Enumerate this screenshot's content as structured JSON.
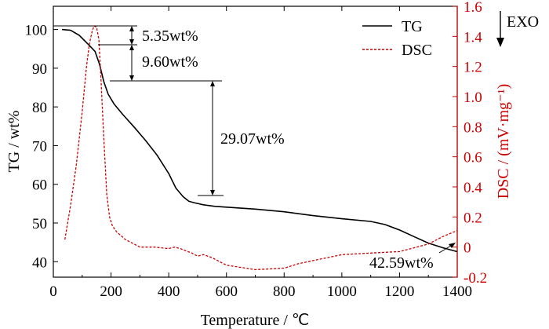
{
  "chart_data": {
    "type": "line",
    "x_axis": {
      "label": "Temperature / ℃",
      "range": [
        0,
        1400
      ],
      "ticks": [
        0,
        200,
        400,
        600,
        800,
        1000,
        1200,
        1400
      ],
      "tick_labels": [
        "0",
        "200",
        "400",
        "600",
        "800",
        "1000",
        "1200",
        "1400"
      ]
    },
    "y_axis_left": {
      "label": "TG / wt%",
      "range": [
        36,
        106
      ],
      "ticks": [
        40,
        50,
        60,
        70,
        80,
        90,
        100
      ],
      "tick_labels": [
        "40",
        "50",
        "60",
        "70",
        "80",
        "90",
        "100"
      ]
    },
    "y_axis_right": {
      "label": "DSC / (mV·mg⁻¹)",
      "range": [
        -0.2,
        1.6
      ],
      "ticks": [
        -0.2,
        0.0,
        0.2,
        0.4,
        0.6,
        0.8,
        1.0,
        1.2,
        1.4,
        1.6
      ],
      "tick_labels": [
        "-0.2",
        "0",
        "0.2",
        "0.4",
        "0.6",
        "0.8",
        "1.0",
        "1.2",
        "1.4",
        "1.6"
      ],
      "color": "#cc0000"
    },
    "series": [
      {
        "name": "TG",
        "axis": "left",
        "color": "#000000",
        "style": "solid",
        "x": [
          30,
          60,
          90,
          110,
          130,
          145,
          160,
          175,
          190,
          210,
          240,
          280,
          320,
          360,
          400,
          425,
          450,
          470,
          490,
          520,
          560,
          600,
          700,
          800,
          900,
          1000,
          1100,
          1150,
          1200,
          1250,
          1300,
          1350,
          1400
        ],
        "y": [
          100.0,
          99.8,
          98.5,
          97.0,
          95.5,
          94.3,
          91.0,
          86.5,
          83.3,
          80.8,
          78.1,
          74.8,
          71.3,
          67.5,
          62.8,
          59.0,
          56.8,
          55.6,
          55.2,
          54.7,
          54.3,
          54.1,
          53.6,
          52.9,
          51.9,
          51.1,
          50.4,
          49.6,
          48.2,
          46.5,
          44.8,
          43.6,
          42.6
        ]
      },
      {
        "name": "DSC",
        "axis": "right",
        "color": "#cc0000",
        "style": "dashed",
        "x": [
          40,
          60,
          80,
          100,
          115,
          125,
          135,
          142,
          150,
          158,
          165,
          175,
          185,
          195,
          205,
          220,
          250,
          280,
          300,
          350,
          400,
          420,
          440,
          480,
          500,
          520,
          550,
          600,
          700,
          800,
          850,
          900,
          950,
          1000,
          1100,
          1200,
          1300,
          1350,
          1400
        ],
        "y": [
          0.05,
          0.28,
          0.55,
          0.9,
          1.2,
          1.35,
          1.44,
          1.47,
          1.46,
          1.38,
          1.12,
          0.72,
          0.35,
          0.2,
          0.14,
          0.1,
          0.05,
          0.02,
          0.0,
          -0.0,
          -0.01,
          0.0,
          -0.01,
          -0.04,
          -0.06,
          -0.05,
          -0.07,
          -0.12,
          -0.15,
          -0.14,
          -0.11,
          -0.09,
          -0.07,
          -0.05,
          -0.04,
          -0.03,
          0.02,
          0.07,
          0.11
        ]
      }
    ],
    "annotations": [
      {
        "text": "5.35wt%",
        "x": 180,
        "y_tg": 97.3
      },
      {
        "text": "9.60wt%",
        "x": 180,
        "y_tg": 90.2
      },
      {
        "text": "29.07wt%",
        "x": 282,
        "y_tg": 71.0
      },
      {
        "text": "42.59wt%",
        "x": 1120,
        "y_tg": 39.0
      }
    ],
    "legend": {
      "placement": "top-right",
      "entries": [
        "TG",
        "DSC"
      ],
      "exo_label": "EXO"
    }
  }
}
